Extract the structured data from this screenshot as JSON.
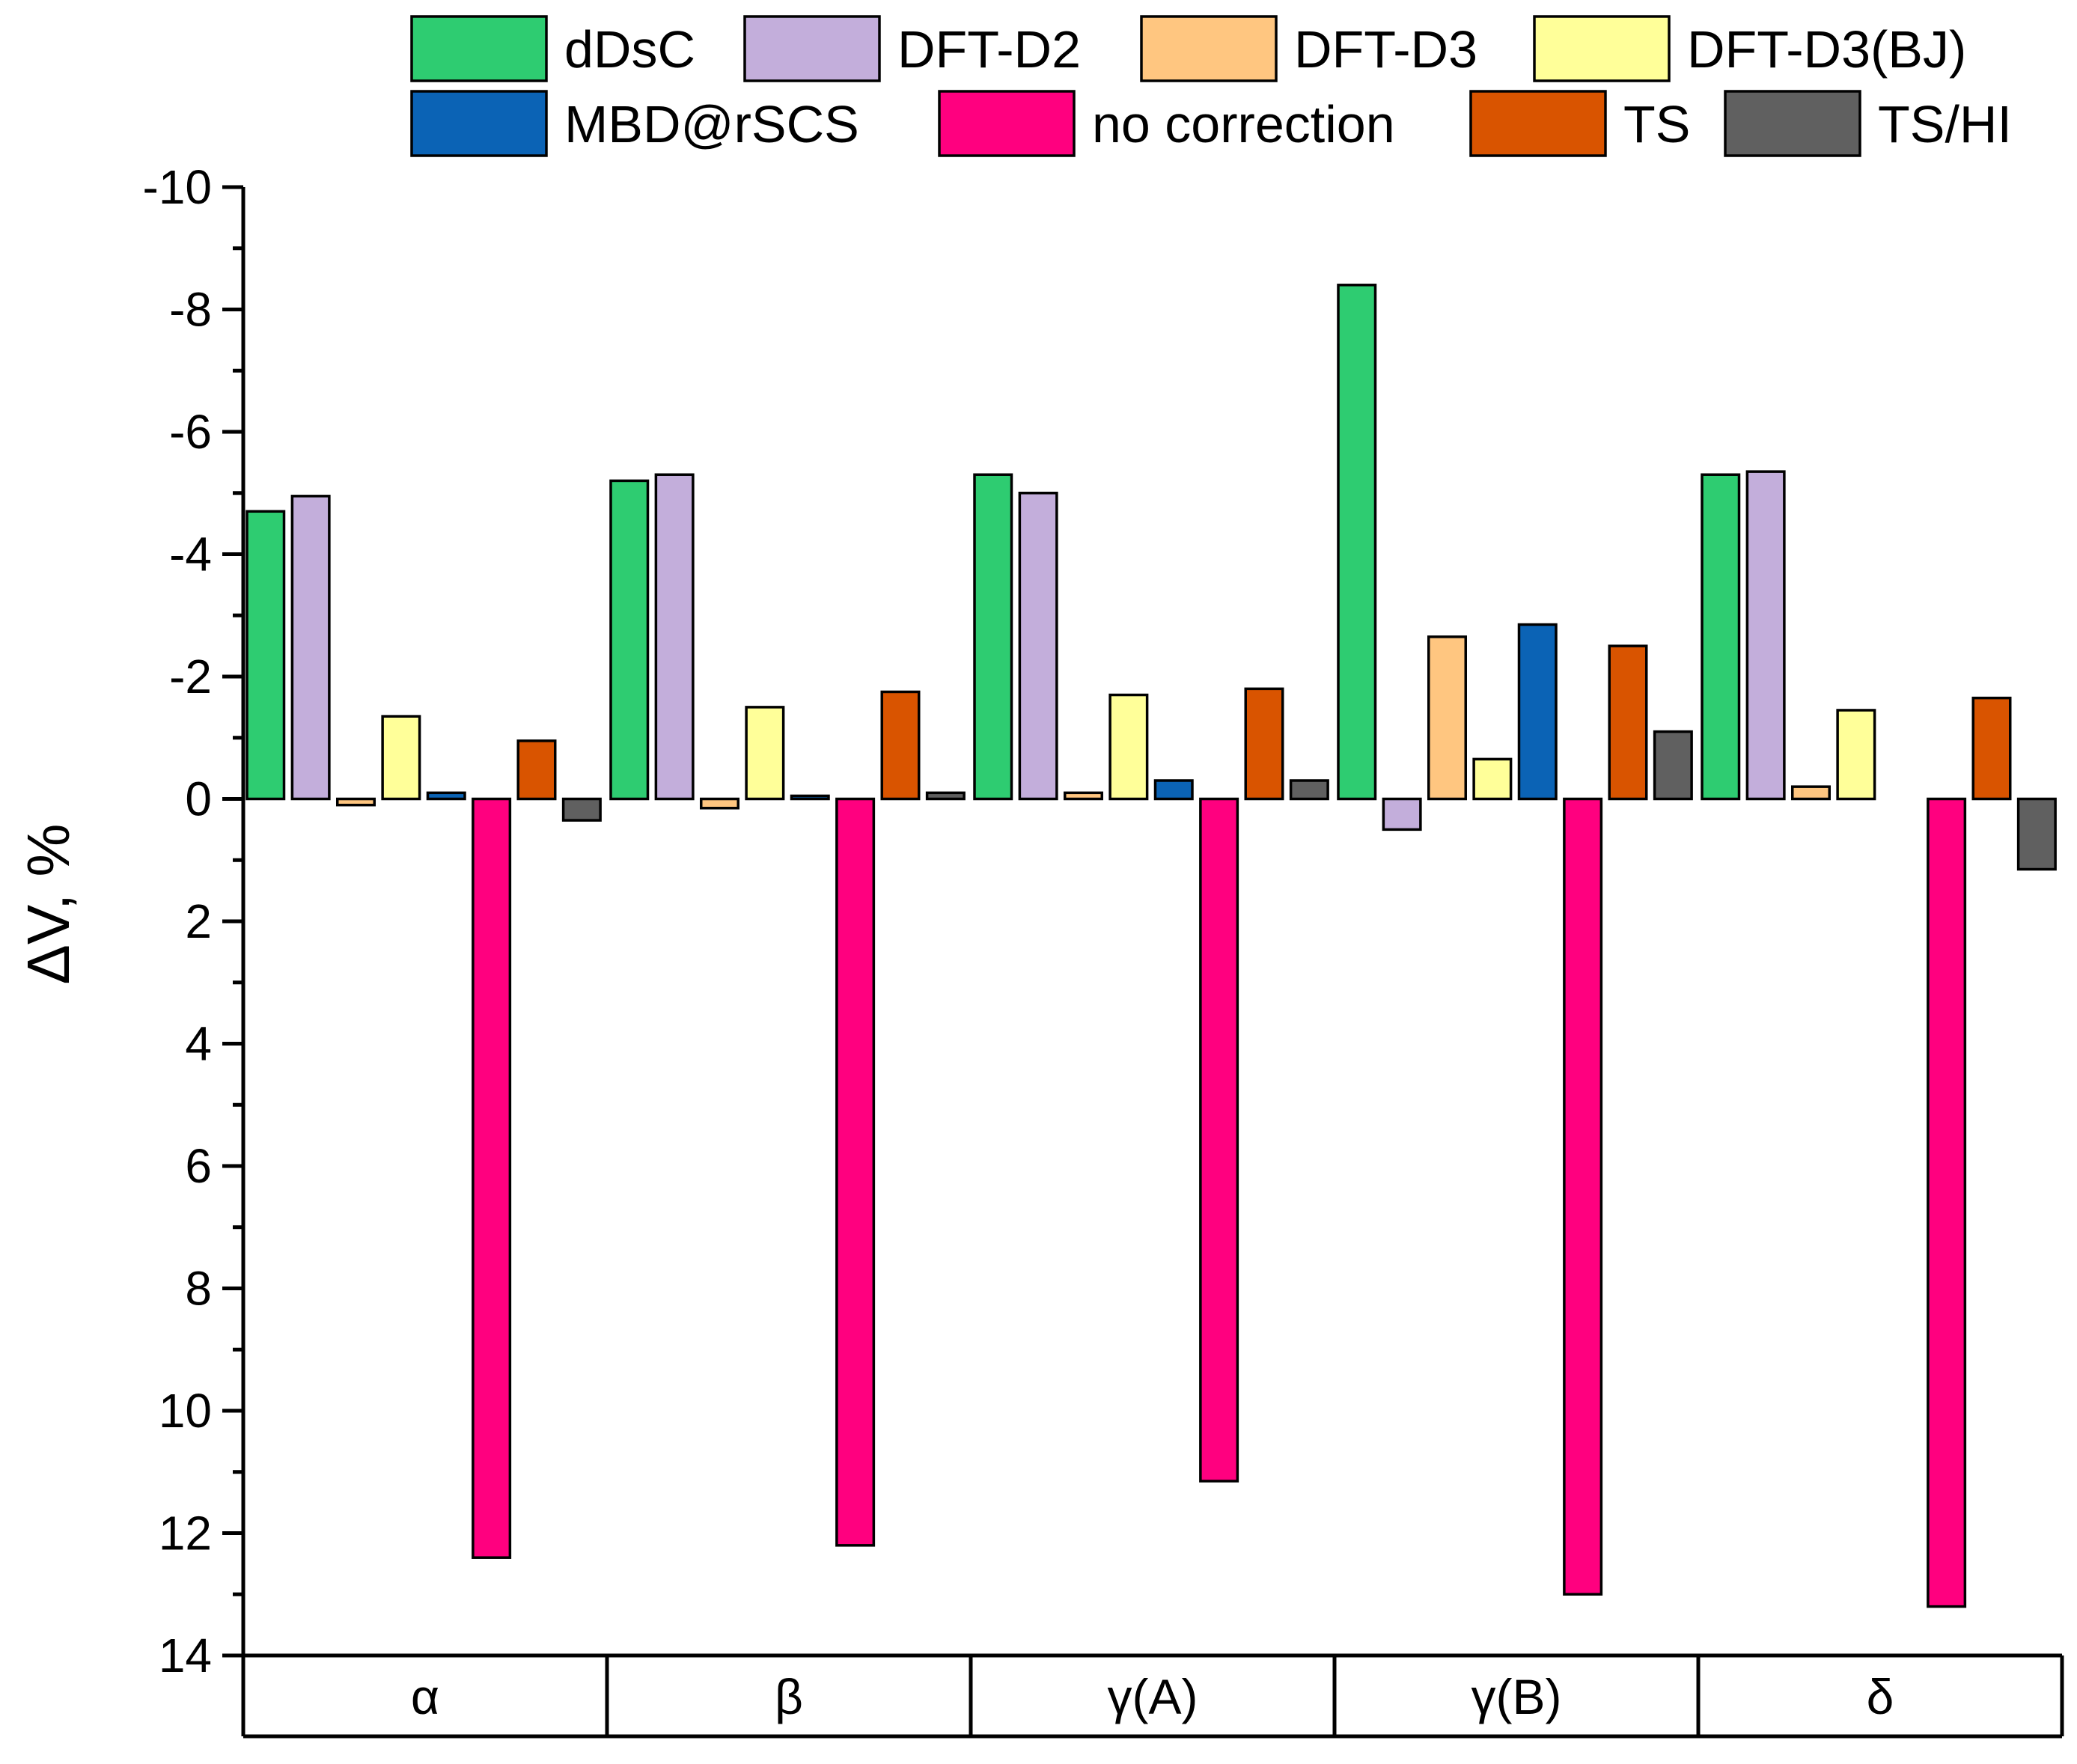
{
  "chart_data": {
    "type": "bar",
    "title": "",
    "xlabel": "",
    "ylabel": "ΔV, %",
    "ylim": [
      -10,
      14
    ],
    "y_inverted": true,
    "y_ticks": [
      -10,
      -8,
      -6,
      -4,
      -2,
      0,
      2,
      4,
      6,
      8,
      10,
      12,
      14
    ],
    "grid": false,
    "legend_position": "top",
    "categories": [
      "α",
      "β",
      "γ(A)",
      "γ(B)",
      "δ"
    ],
    "series": [
      {
        "name": "dDsC",
        "color": "#2ecc71",
        "values": [
          -4.7,
          -5.2,
          -5.3,
          -8.4,
          -5.3
        ]
      },
      {
        "name": "DFT-D2",
        "color": "#c3aedb",
        "values": [
          -4.95,
          -5.3,
          -5.0,
          0.5,
          -5.35
        ]
      },
      {
        "name": "DFT-D3",
        "color": "#ffc680",
        "values": [
          0.1,
          0.15,
          -0.1,
          -2.65,
          -0.2
        ]
      },
      {
        "name": "DFT-D3(BJ)",
        "color": "#ffff99",
        "values": [
          -1.35,
          -1.5,
          -1.7,
          -0.65,
          -1.45
        ]
      },
      {
        "name": "MBD@rSCS",
        "color": "#0b63b5",
        "values": [
          -0.1,
          -0.05,
          -0.3,
          -2.85,
          0
        ]
      },
      {
        "name": "no correction",
        "color": "#ff007f",
        "values": [
          12.4,
          12.2,
          11.15,
          13.0,
          13.2
        ]
      },
      {
        "name": "TS",
        "color": "#d95400",
        "values": [
          -0.95,
          -1.75,
          -1.8,
          -2.5,
          -1.65
        ]
      },
      {
        "name": "TS/HI",
        "color": "#606060",
        "values": [
          0.35,
          -0.1,
          -0.3,
          -1.1,
          1.15
        ]
      }
    ]
  }
}
